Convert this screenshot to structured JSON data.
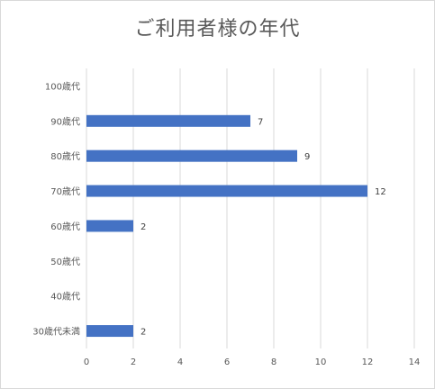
{
  "chart_data": {
    "type": "bar",
    "orientation": "horizontal",
    "title": "ご利用者様の年代",
    "categories": [
      "100歳代",
      "90歳代",
      "80歳代",
      "70歳代",
      "60歳代",
      "50歳代",
      "40歳代",
      "30歳代未満"
    ],
    "values": [
      0,
      7,
      9,
      12,
      2,
      0,
      0,
      2
    ],
    "data_labels": [
      "",
      "7",
      "9",
      "12",
      "2",
      "",
      "",
      "2"
    ],
    "xlim": [
      0,
      14
    ],
    "xticks": [
      0,
      2,
      4,
      6,
      8,
      10,
      12,
      14
    ],
    "xlabel": "",
    "ylabel": "",
    "grid": true,
    "legend": "none",
    "bar_color": "#4472c4",
    "grid_color": "#d9d9d9"
  }
}
